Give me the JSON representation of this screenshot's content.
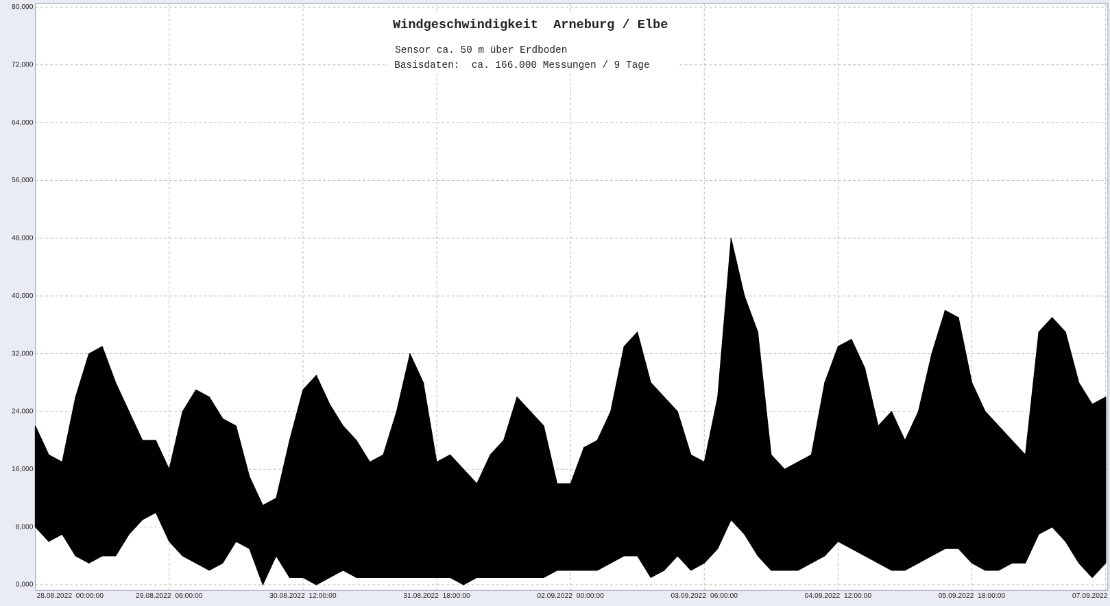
{
  "chart_data": {
    "type": "range",
    "title": "Windgeschwindigkeit  Arneburg / Elbe",
    "subtitle": [
      "Sensor ca. 50 m über Erdboden",
      "Basisdaten:  ca. 166.000 Messungen / 9 Tage"
    ],
    "color": "#000000",
    "x": [
      "28.08.2022 00:00:00",
      "28.08.2022 03:00:00",
      "28.08.2022 06:00:00",
      "28.08.2022 09:00:00",
      "28.08.2022 12:00:00",
      "28.08.2022 15:00:00",
      "28.08.2022 18:00:00",
      "28.08.2022 21:00:00",
      "29.08.2022 00:00:00",
      "29.08.2022 03:00:00",
      "29.08.2022 06:00:00",
      "29.08.2022 09:00:00",
      "29.08.2022 12:00:00",
      "29.08.2022 15:00:00",
      "29.08.2022 18:00:00",
      "29.08.2022 21:00:00",
      "30.08.2022 00:00:00",
      "30.08.2022 03:00:00",
      "30.08.2022 06:00:00",
      "30.08.2022 09:00:00",
      "30.08.2022 12:00:00",
      "30.08.2022 15:00:00",
      "30.08.2022 18:00:00",
      "30.08.2022 21:00:00",
      "31.08.2022 00:00:00",
      "31.08.2022 03:00:00",
      "31.08.2022 06:00:00",
      "31.08.2022 09:00:00",
      "31.08.2022 12:00:00",
      "31.08.2022 15:00:00",
      "31.08.2022 18:00:00",
      "31.08.2022 21:00:00",
      "01.09.2022 00:00:00",
      "01.09.2022 03:00:00",
      "01.09.2022 06:00:00",
      "01.09.2022 09:00:00",
      "01.09.2022 12:00:00",
      "01.09.2022 15:00:00",
      "01.09.2022 18:00:00",
      "01.09.2022 21:00:00",
      "02.09.2022 00:00:00",
      "02.09.2022 03:00:00",
      "02.09.2022 06:00:00",
      "02.09.2022 09:00:00",
      "02.09.2022 12:00:00",
      "02.09.2022 15:00:00",
      "02.09.2022 18:00:00",
      "02.09.2022 21:00:00",
      "03.09.2022 00:00:00",
      "03.09.2022 03:00:00",
      "03.09.2022 06:00:00",
      "03.09.2022 09:00:00",
      "03.09.2022 12:00:00",
      "03.09.2022 15:00:00",
      "03.09.2022 18:00:00",
      "03.09.2022 21:00:00",
      "04.09.2022 00:00:00",
      "04.09.2022 03:00:00",
      "04.09.2022 06:00:00",
      "04.09.2022 09:00:00",
      "04.09.2022 12:00:00",
      "04.09.2022 15:00:00",
      "04.09.2022 18:00:00",
      "04.09.2022 21:00:00",
      "05.09.2022 00:00:00",
      "05.09.2022 03:00:00",
      "05.09.2022 06:00:00",
      "05.09.2022 09:00:00",
      "05.09.2022 12:00:00",
      "05.09.2022 15:00:00",
      "05.09.2022 18:00:00",
      "05.09.2022 21:00:00",
      "06.09.2022 00:00:00",
      "06.09.2022 03:00:00",
      "06.09.2022 06:00:00",
      "06.09.2022 09:00:00",
      "06.09.2022 12:00:00",
      "06.09.2022 15:00:00",
      "06.09.2022 18:00:00",
      "06.09.2022 21:00:00",
      "07.09.2022 00:00:00"
    ],
    "high": [
      22,
      18,
      17,
      26,
      32,
      33,
      28,
      24,
      20,
      20,
      16,
      24,
      27,
      26,
      23,
      22,
      15,
      11,
      12,
      20,
      27,
      29,
      25,
      22,
      20,
      17,
      18,
      24,
      32,
      28,
      17,
      18,
      16,
      14,
      18,
      20,
      26,
      24,
      22,
      14,
      14,
      19,
      20,
      24,
      33,
      35,
      28,
      26,
      24,
      18,
      17,
      26,
      48,
      40,
      35,
      18,
      16,
      17,
      18,
      28,
      33,
      34,
      30,
      22,
      24,
      20,
      24,
      32,
      38,
      37,
      28,
      24,
      22,
      20,
      18,
      35,
      37,
      35,
      28,
      25,
      26
    ],
    "low": [
      8,
      6,
      7,
      4,
      3,
      4,
      4,
      7,
      9,
      10,
      6,
      4,
      3,
      2,
      3,
      6,
      5,
      0,
      4,
      1,
      1,
      0,
      1,
      2,
      1,
      1,
      1,
      1,
      1,
      1,
      1,
      1,
      0,
      1,
      1,
      1,
      1,
      1,
      1,
      2,
      2,
      2,
      2,
      3,
      4,
      4,
      1,
      2,
      4,
      2,
      3,
      5,
      9,
      7,
      4,
      2,
      2,
      2,
      3,
      4,
      6,
      5,
      4,
      3,
      2,
      2,
      3,
      4,
      5,
      5,
      3,
      2,
      2,
      3,
      3,
      7,
      8,
      6,
      3,
      1,
      3
    ],
    "xlim": [
      "28.08.2022 00:00:00",
      "07.09.2022 00:30:00"
    ],
    "xticks": [
      "28.08.2022  00:00:00",
      "29.08.2022  06:00:00",
      "30.08.2022  12:00:00",
      "31.08.2022  18:00:00",
      "02.09.2022  00:00:00",
      "03.09.2022  06:00:00",
      "04.09.2022  12:00:00",
      "05.09.2022  18:00:00",
      "07.09.2022  00:00:00"
    ],
    "ylim": [
      0,
      80
    ],
    "yticks": [
      {
        "value": 0,
        "label": "0,000"
      },
      {
        "value": 8,
        "label": "8,000"
      },
      {
        "value": 16,
        "label": "16,000"
      },
      {
        "value": 24,
        "label": "24,000"
      },
      {
        "value": 32,
        "label": "32,000"
      },
      {
        "value": 40,
        "label": "40,000"
      },
      {
        "value": 48,
        "label": "48,000"
      },
      {
        "value": 56,
        "label": "56,000"
      },
      {
        "value": 64,
        "label": "64,000"
      },
      {
        "value": 72,
        "label": "72,000"
      },
      {
        "value": 80,
        "label": "80,000"
      }
    ],
    "grid": true
  }
}
